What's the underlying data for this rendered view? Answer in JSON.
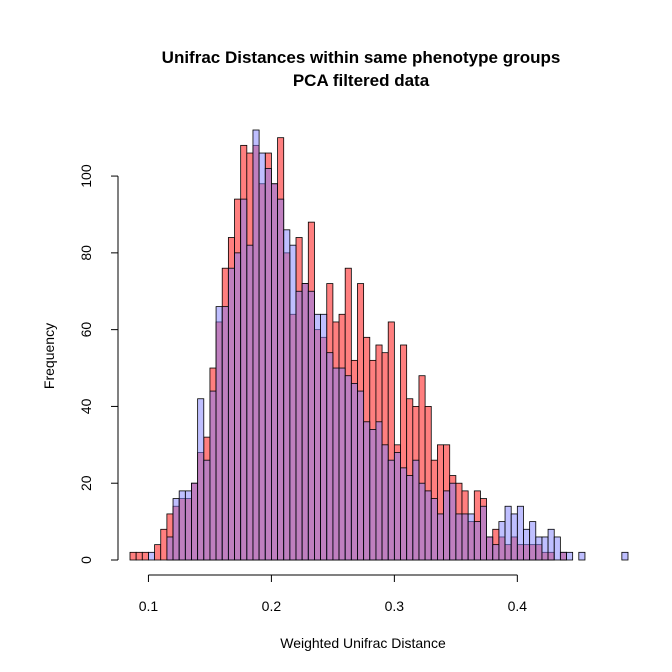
{
  "chart_data": {
    "type": "bar",
    "title": "Unifrac Distances within same phenotype groups",
    "subtitle": "PCA filtered data",
    "xlabel": "Weighted Unifrac Distance",
    "ylabel": "Frequency",
    "xlim": [
      0.085,
      0.49
    ],
    "ylim": [
      0,
      112
    ],
    "xticks": [
      0.1,
      0.2,
      0.3,
      0.4
    ],
    "xtick_labels": [
      "0.1",
      "0.2",
      "0.3",
      "0.4"
    ],
    "yticks": [
      0,
      20,
      40,
      60,
      80,
      100
    ],
    "ytick_labels": [
      "0",
      "20",
      "40",
      "60",
      "80",
      "100"
    ],
    "grid": false,
    "bin_width": 0.005,
    "bin_start": 0.085,
    "series": [
      {
        "color": "#FF7F7F",
        "values": [
          2,
          2,
          2,
          0,
          4,
          8,
          12,
          14,
          16,
          16,
          20,
          28,
          32,
          50,
          62,
          76,
          84,
          94,
          108,
          106,
          108,
          98,
          106,
          98,
          110,
          80,
          64,
          84,
          72,
          88,
          60,
          58,
          72,
          62,
          64,
          76,
          52,
          72,
          58,
          52,
          56,
          54,
          62,
          30,
          56,
          42,
          40,
          48,
          40,
          26,
          30,
          30,
          22,
          20,
          18,
          10,
          18,
          16,
          6,
          8,
          6,
          4,
          6,
          4,
          4,
          4,
          4,
          2,
          2,
          0,
          2,
          0,
          0,
          0,
          0,
          0,
          0,
          0,
          0,
          0,
          0
        ]
      },
      {
        "color": "#7F7FFF",
        "values": [
          0,
          0,
          0,
          2,
          0,
          0,
          6,
          16,
          18,
          18,
          20,
          42,
          26,
          44,
          66,
          66,
          76,
          80,
          94,
          82,
          112,
          106,
          102,
          98,
          94,
          86,
          82,
          70,
          72,
          70,
          64,
          64,
          54,
          50,
          50,
          48,
          46,
          44,
          36,
          34,
          36,
          30,
          26,
          28,
          24,
          22,
          26,
          20,
          18,
          16,
          12,
          18,
          20,
          12,
          12,
          12,
          10,
          14,
          6,
          4,
          10,
          14,
          12,
          14,
          8,
          10,
          6,
          6,
          8,
          6,
          2,
          2,
          0,
          2,
          0,
          0,
          0,
          0,
          0,
          0,
          2
        ]
      }
    ]
  }
}
